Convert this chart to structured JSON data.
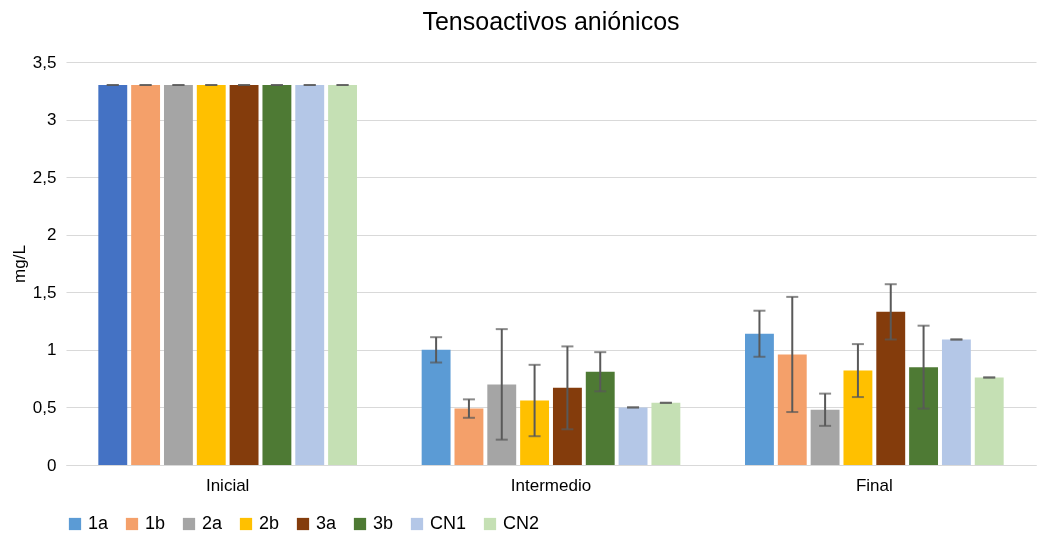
{
  "chart_data": {
    "type": "bar",
    "title": "Tensoactivos aniónicos",
    "ylabel": "mg/L",
    "categories": [
      "Inicial",
      "Intermedio",
      "Final"
    ],
    "series": [
      {
        "name": "1a",
        "color": "#5b9bd5",
        "colors": [
          "#4472c4",
          "#5b9bd5",
          "#5b9bd5"
        ],
        "values": [
          3.3,
          1.0,
          1.14
        ],
        "errors": [
          0,
          0.11,
          0.2
        ]
      },
      {
        "name": "1b",
        "color": "#f4a06a",
        "values": [
          3.3,
          0.49,
          0.96
        ],
        "errors": [
          0,
          0.08,
          0.5
        ]
      },
      {
        "name": "2a",
        "color": "#a5a5a5",
        "values": [
          3.3,
          0.7,
          0.48
        ],
        "errors": [
          0,
          0.48,
          0.14
        ]
      },
      {
        "name": "2b",
        "color": "#ffc000",
        "values": [
          3.3,
          0.56,
          0.82
        ],
        "errors": [
          0,
          0.31,
          0.23
        ]
      },
      {
        "name": "3a",
        "color": "#843c0c",
        "values": [
          3.3,
          0.67,
          1.33
        ],
        "errors": [
          0,
          0.36,
          0.24
        ]
      },
      {
        "name": "3b",
        "color": "#4e7a34",
        "values": [
          3.3,
          0.81,
          0.85
        ],
        "errors": [
          0,
          0.17,
          0.36
        ]
      },
      {
        "name": "CN1",
        "color": "#b4c7e7",
        "values": [
          3.3,
          0.5,
          1.09
        ],
        "errors": [
          0,
          0,
          0
        ]
      },
      {
        "name": "CN2",
        "color": "#c5e0b4",
        "values": [
          3.3,
          0.54,
          0.76
        ],
        "errors": [
          0,
          0,
          0
        ]
      }
    ],
    "ylim": [
      0,
      3.5
    ],
    "yticks": [
      0,
      {
        "value": 0.5,
        "label": "0,5"
      },
      1,
      {
        "value": 1.5,
        "label": "1,5"
      },
      2,
      {
        "value": 2.5,
        "label": "2,5"
      },
      3,
      {
        "value": 3.5,
        "label": "3,5"
      }
    ],
    "grid": "y",
    "legend": "bottom"
  }
}
